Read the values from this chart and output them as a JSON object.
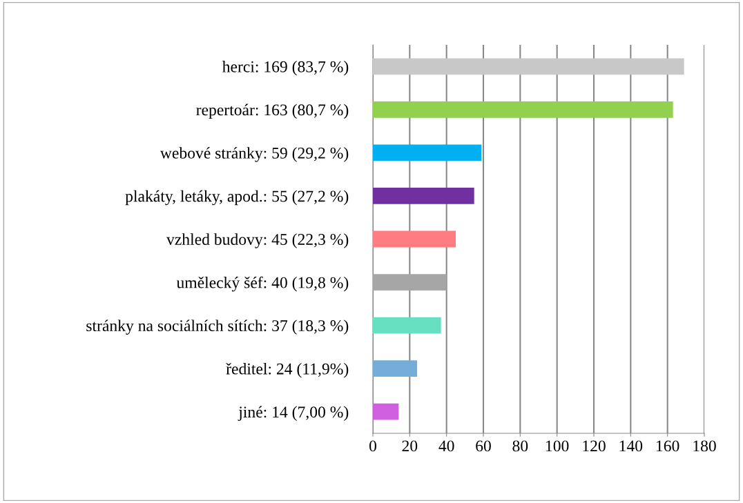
{
  "chart_data": {
    "type": "bar",
    "orientation": "horizontal",
    "categories": [
      "herci: 169 (83,7 %)",
      "repertoár: 163 (80,7 %)",
      "webové stránky: 59 (29,2 %)",
      "plakáty, letáky, apod.: 55 (27,2 %)",
      "vzhled budovy: 45 (22,3 %)",
      "umělecký šéf: 40 (19,8 %)",
      "stránky na sociálních sítích: 37 (18,3 %)",
      "ředitel: 24 (11,9%)",
      "jiné: 14 (7,00 %)"
    ],
    "values": [
      169,
      163,
      59,
      55,
      45,
      40,
      37,
      24,
      14
    ],
    "colors": [
      "#c8c8c8",
      "#92d050",
      "#00b0f0",
      "#7030a0",
      "#ff7c80",
      "#a6a6a6",
      "#66e0c0",
      "#74aed8",
      "#d060e0"
    ],
    "xlim": [
      0,
      180
    ],
    "xticks": [
      0,
      20,
      40,
      60,
      80,
      100,
      120,
      140,
      160,
      180
    ],
    "grid": "x"
  }
}
